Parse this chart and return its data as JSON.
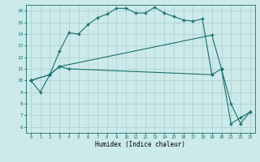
{
  "xlabel": "Humidex (Indice chaleur)",
  "bg_color": "#cceaea",
  "grid_color": "#aacece",
  "line_color": "#1a6e6e",
  "xlim": [
    -0.5,
    23.5
  ],
  "ylim": [
    5.5,
    16.5
  ],
  "yticks": [
    6,
    7,
    8,
    9,
    10,
    11,
    12,
    13,
    14,
    15,
    16
  ],
  "xticks": [
    0,
    1,
    2,
    3,
    4,
    5,
    6,
    7,
    8,
    9,
    10,
    11,
    12,
    13,
    14,
    15,
    16,
    17,
    18,
    19,
    20,
    21,
    22,
    23
  ],
  "line1_x": [
    0,
    1,
    2,
    3,
    4,
    5,
    6,
    7,
    8,
    9,
    10,
    11,
    12,
    13,
    14,
    15,
    16,
    17,
    18,
    19
  ],
  "line1_y": [
    10,
    9,
    10.5,
    12.5,
    14.1,
    14.0,
    14.8,
    15.4,
    15.7,
    16.2,
    16.2,
    15.8,
    15.8,
    16.3,
    15.8,
    15.5,
    15.2,
    15.1,
    15.3,
    10.5
  ],
  "line2_x": [
    0,
    2,
    3,
    19,
    20,
    21,
    22,
    23
  ],
  "line2_y": [
    10,
    10.5,
    11.2,
    13.9,
    11.0,
    8.0,
    6.3,
    7.3
  ],
  "line3_x": [
    0,
    2,
    3,
    4,
    19,
    20,
    21,
    22,
    23
  ],
  "line3_y": [
    10,
    10.5,
    11.2,
    11.0,
    10.5,
    11.0,
    6.3,
    6.8,
    7.3
  ]
}
